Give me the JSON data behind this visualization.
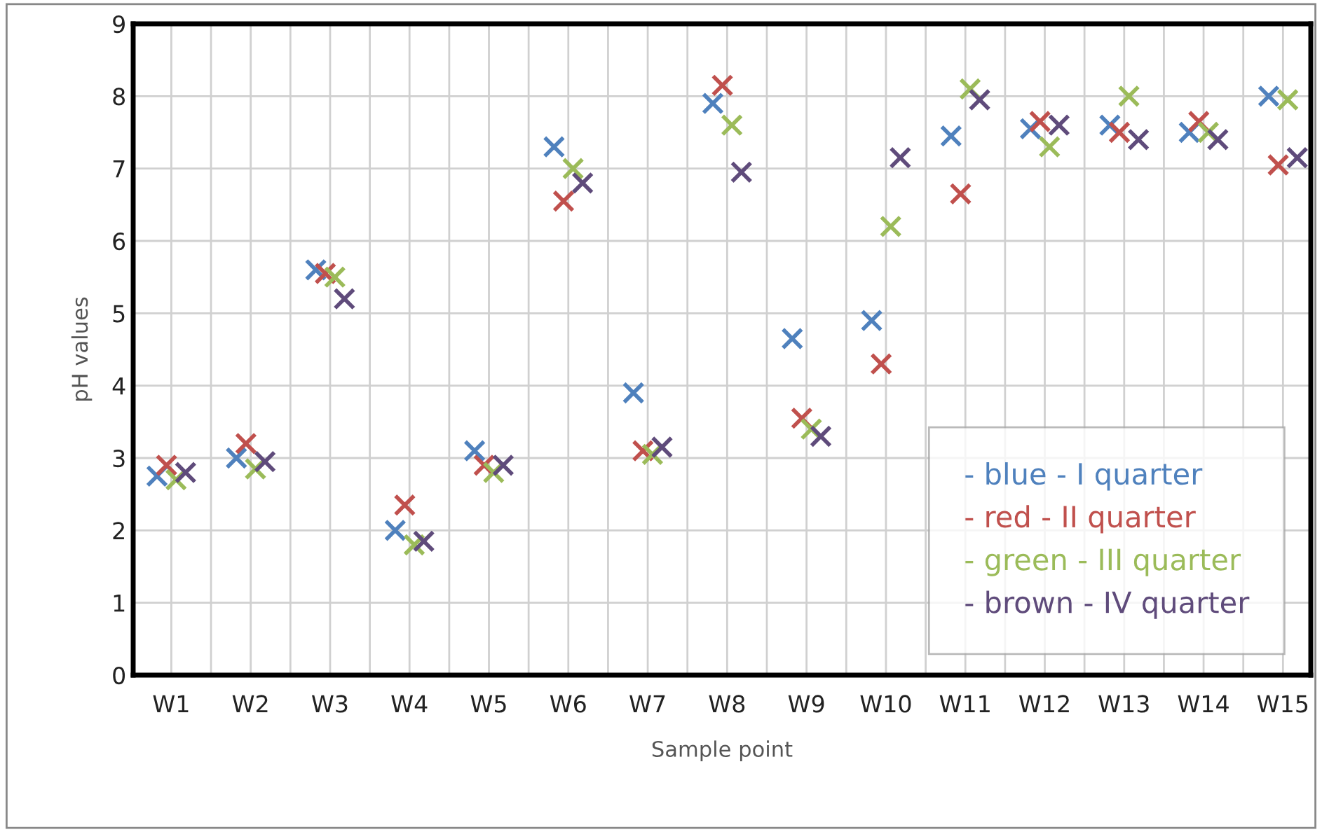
{
  "chart_data": {
    "type": "scatter",
    "xlabel": "Sample point",
    "ylabel": "pH values",
    "categories": [
      "W1",
      "W2",
      "W3",
      "W4",
      "W5",
      "W6",
      "W7",
      "W8",
      "W9",
      "W10",
      "W11",
      "W12",
      "W13",
      "W14",
      "W15"
    ],
    "series": [
      {
        "name": "- blue - I quarter",
        "color": "#4f81bd",
        "values": [
          2.75,
          3.0,
          5.6,
          2.0,
          3.1,
          7.3,
          3.9,
          7.9,
          4.65,
          4.9,
          7.45,
          7.55,
          7.6,
          7.5,
          8.0
        ]
      },
      {
        "name": "- red - II quarter",
        "color": "#c0504d",
        "values": [
          2.9,
          3.2,
          5.55,
          2.35,
          2.9,
          6.55,
          3.1,
          8.15,
          3.55,
          4.3,
          6.65,
          7.65,
          7.5,
          7.65,
          7.05
        ]
      },
      {
        "name": "- green - III quarter",
        "color": "#9bbb59",
        "values": [
          2.7,
          2.85,
          5.5,
          1.8,
          2.8,
          7.0,
          3.05,
          7.6,
          3.4,
          6.2,
          8.1,
          7.3,
          8.0,
          7.5,
          7.95
        ]
      },
      {
        "name": "- brown - IV quarter",
        "color": "#5f4b7b",
        "values": [
          2.8,
          2.95,
          5.2,
          1.85,
          2.9,
          6.8,
          3.15,
          6.95,
          3.3,
          7.15,
          7.95,
          7.6,
          7.4,
          7.4,
          7.15
        ]
      }
    ],
    "ylim": [
      0,
      9
    ],
    "yticks": [
      0,
      1,
      2,
      3,
      4,
      5,
      6,
      7,
      8,
      9
    ],
    "grid": true,
    "marker": "cross",
    "legend": "bottom right"
  }
}
